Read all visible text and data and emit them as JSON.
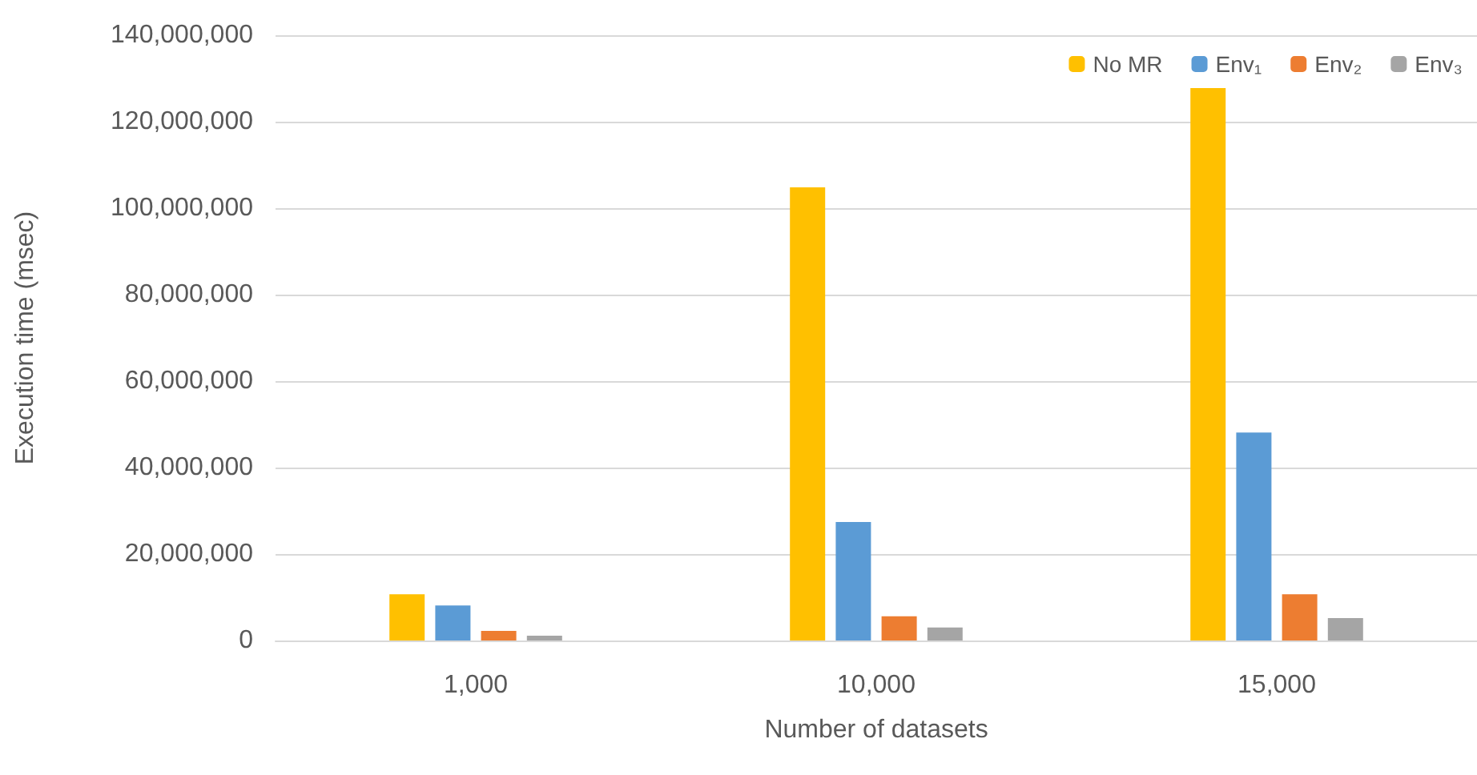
{
  "chart_data": {
    "type": "bar",
    "xlabel": "Number of datasets",
    "ylabel": "Execution time (msec)",
    "categories": [
      "1,000",
      "10,000",
      "15,000"
    ],
    "series": [
      {
        "name": "No MR",
        "color": "#ffc000",
        "values": [
          10700000,
          104800000,
          127800000
        ]
      },
      {
        "name": "Env₁",
        "color": "#5b9bd5",
        "values": [
          8100000,
          27400000,
          48100000
        ]
      },
      {
        "name": "Env₂",
        "color": "#ed7d31",
        "values": [
          2200000,
          5600000,
          10700000
        ]
      },
      {
        "name": "Env₃",
        "color": "#a5a5a5",
        "values": [
          1100000,
          3000000,
          5200000
        ]
      }
    ],
    "ylim": [
      0,
      140000000
    ],
    "yticks": [
      {
        "value": 0,
        "label": "0"
      },
      {
        "value": 20000000,
        "label": "20,000,000"
      },
      {
        "value": 40000000,
        "label": "40,000,000"
      },
      {
        "value": 60000000,
        "label": "60,000,000"
      },
      {
        "value": 80000000,
        "label": "80,000,000"
      },
      {
        "value": 100000000,
        "label": "100,000,000"
      },
      {
        "value": 120000000,
        "label": "120,000,000"
      },
      {
        "value": 140000000,
        "label": "140,000,000"
      }
    ],
    "grid": "y",
    "legend": "top right"
  }
}
